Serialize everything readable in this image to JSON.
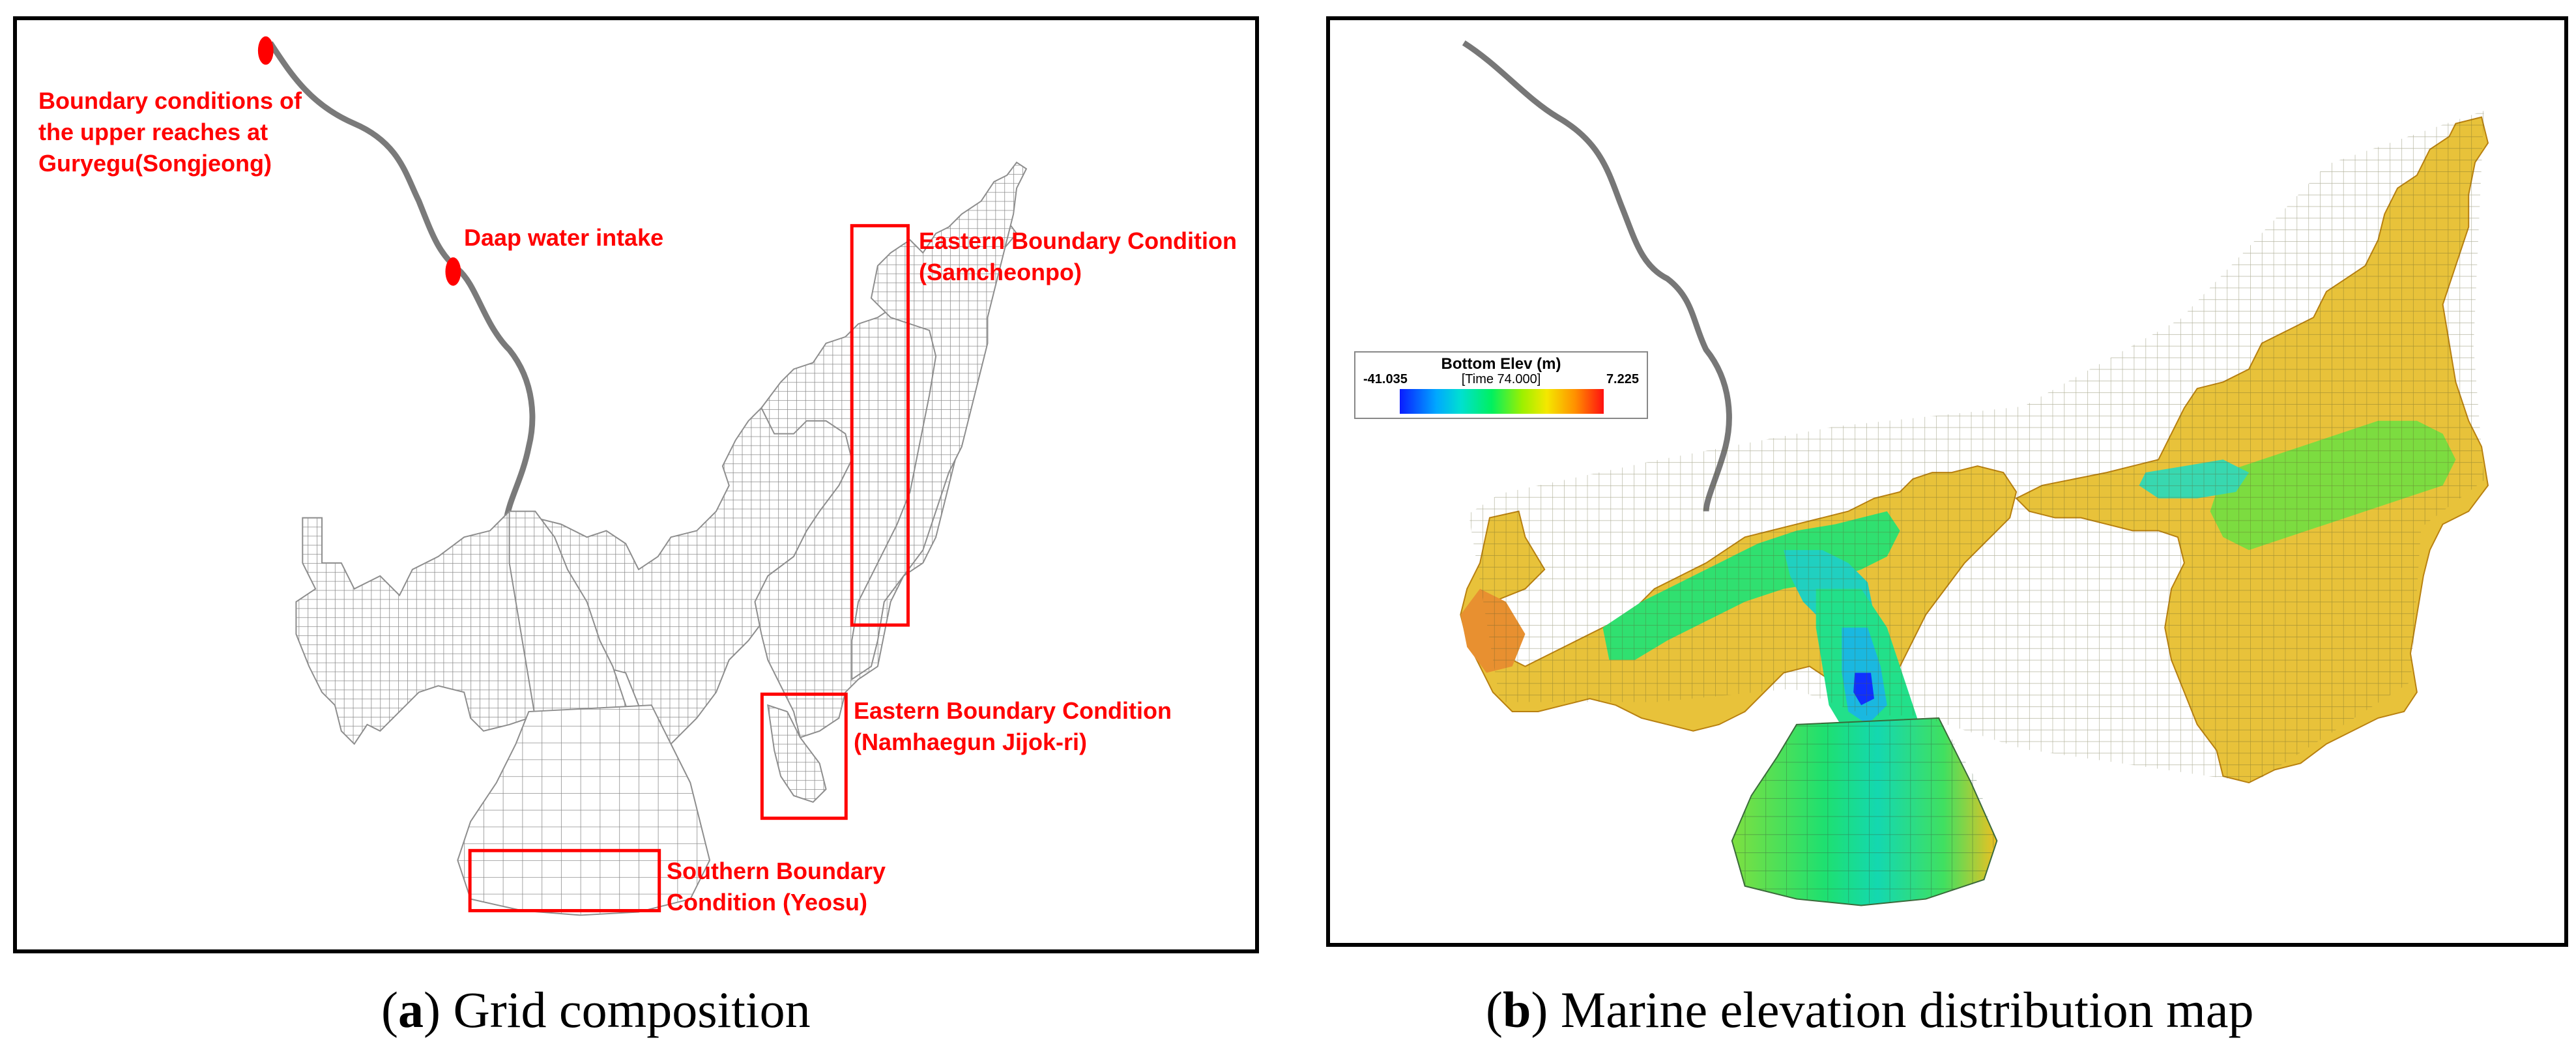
{
  "panel_a": {
    "annotations": {
      "upper_boundary": "Boundary conditions of\nthe upper reaches at\nGuryegu(Songjeong)",
      "daap_intake": "Daap water intake",
      "eastern_samcheonpo": "Eastern Boundary Condition\n(Samcheonpo)",
      "eastern_namhae": "Eastern Boundary Condition\n(Namhaegun Jijok-ri)",
      "southern_yeosu": "Southern Boundary\nCondition (Yeosu)"
    },
    "caption_letter": "a",
    "caption_text": "Grid composition",
    "colors": {
      "annotation": "#ff0000",
      "grid_line": "#9a9a9a",
      "river": "#777777"
    }
  },
  "panel_b": {
    "legend": {
      "title": "Bottom Elev (m)",
      "min": "-41.035",
      "time": "[Time 74.000]",
      "max": "7.225"
    },
    "caption_letter": "b",
    "caption_text": "Marine elevation distribution map",
    "colors": {
      "deep": "#0a1cff",
      "mid": "#00f060",
      "shallow": "#e8c020",
      "high": "#ff1010"
    }
  }
}
